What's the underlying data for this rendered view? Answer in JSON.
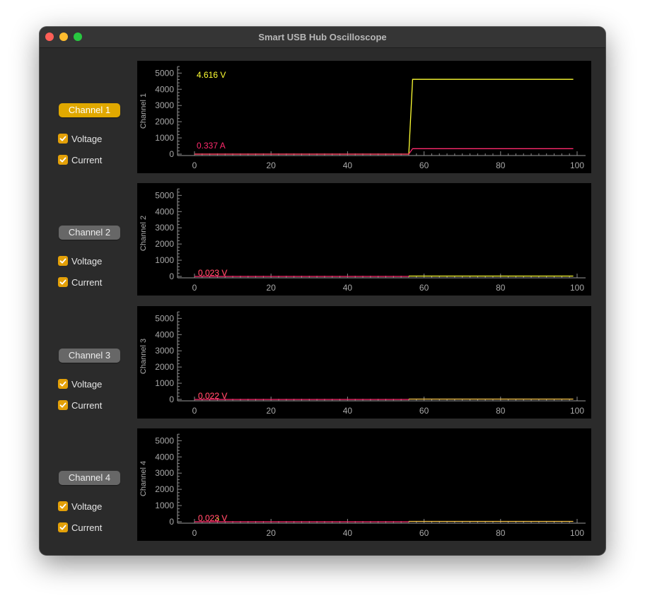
{
  "window": {
    "title": "Smart USB Hub Oscilloscope"
  },
  "colors": {
    "voltage": "#ffff33",
    "current": "#ff2a6d",
    "button_active": "#e0a800",
    "button_inactive": "#676767",
    "checkbox": "#e3a008"
  },
  "channels": [
    {
      "button_label": "Channel 1",
      "active": true,
      "voltage_label": "Voltage",
      "voltage_checked": true,
      "current_label": "Current",
      "current_checked": true,
      "axis_label": "Channel 1",
      "voltage_readout": "4.616 V",
      "current_readout": "0.337 A"
    },
    {
      "button_label": "Channel 2",
      "active": false,
      "voltage_label": "Voltage",
      "voltage_checked": true,
      "current_label": "Current",
      "current_checked": true,
      "axis_label": "Channel 2",
      "voltage_readout": "0.023 V",
      "current_readout": "0.023 V"
    },
    {
      "button_label": "Channel 3",
      "active": false,
      "voltage_label": "Voltage",
      "voltage_checked": true,
      "current_label": "Current",
      "current_checked": true,
      "axis_label": "Channel 3",
      "voltage_readout": "0.022 V",
      "current_readout": "0.022 V"
    },
    {
      "button_label": "Channel 4",
      "active": false,
      "voltage_label": "Voltage",
      "voltage_checked": true,
      "current_label": "Current",
      "current_checked": true,
      "axis_label": "Channel 4",
      "voltage_readout": "0.023 V",
      "current_readout": "0.022 V"
    }
  ],
  "chart_data": [
    {
      "type": "line",
      "ylabel": "Channel 1",
      "xlim": [
        0,
        100
      ],
      "ylim": [
        0,
        5600
      ],
      "x_ticks": [
        0,
        20,
        40,
        60,
        80,
        100
      ],
      "y_ticks": [
        0,
        1000,
        2000,
        3000,
        4000,
        5000
      ],
      "series": [
        {
          "color": "#ffff33",
          "x": [
            0,
            56,
            57,
            99
          ],
          "y": [
            0,
            0,
            4616,
            4616
          ]
        },
        {
          "color": "#ff2a6d",
          "x": [
            0,
            56,
            57,
            99
          ],
          "y": [
            0,
            0,
            337,
            337
          ]
        }
      ]
    },
    {
      "type": "line",
      "ylabel": "Channel 2",
      "xlim": [
        0,
        100
      ],
      "ylim": [
        0,
        5600
      ],
      "x_ticks": [
        0,
        20,
        40,
        60,
        80,
        100
      ],
      "y_ticks": [
        0,
        1000,
        2000,
        3000,
        4000,
        5000
      ],
      "series": [
        {
          "color": "#ff2a6d",
          "x": [
            0,
            56
          ],
          "y": [
            0,
            0
          ]
        },
        {
          "color": "#ffff33",
          "x": [
            56,
            99
          ],
          "y": [
            23,
            23
          ]
        }
      ]
    },
    {
      "type": "line",
      "ylabel": "Channel 3",
      "xlim": [
        0,
        100
      ],
      "ylim": [
        0,
        5600
      ],
      "x_ticks": [
        0,
        20,
        40,
        60,
        80,
        100
      ],
      "y_ticks": [
        0,
        1000,
        2000,
        3000,
        4000,
        5000
      ],
      "series": [
        {
          "color": "#ff2a6d",
          "x": [
            0,
            56
          ],
          "y": [
            0,
            0
          ]
        },
        {
          "color": "#ffc94d",
          "x": [
            56,
            99
          ],
          "y": [
            22,
            22
          ]
        }
      ]
    },
    {
      "type": "line",
      "ylabel": "Channel 4",
      "xlim": [
        0,
        100
      ],
      "ylim": [
        0,
        5600
      ],
      "x_ticks": [
        0,
        20,
        40,
        60,
        80,
        100
      ],
      "y_ticks": [
        0,
        1000,
        2000,
        3000,
        4000,
        5000
      ],
      "series": [
        {
          "color": "#ff2a6d",
          "x": [
            0,
            56
          ],
          "y": [
            0,
            0
          ]
        },
        {
          "color": "#ffc94d",
          "x": [
            56,
            99
          ],
          "y": [
            23,
            23
          ]
        }
      ]
    }
  ]
}
